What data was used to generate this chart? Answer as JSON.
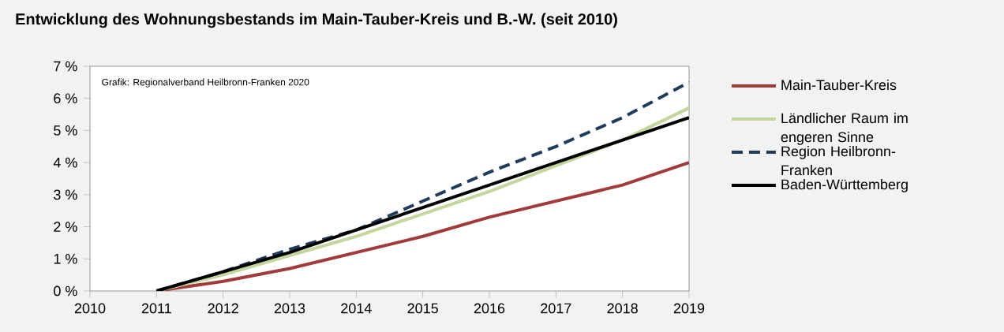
{
  "chart_data": {
    "type": "line",
    "title": "Entwicklung des Wohnungsbestands im Main-Tauber-Kreis und B.-W. (seit 2010)",
    "annotations": [
      "Grafik: Regionalverband Heilbronn-Franken 2020"
    ],
    "x": [
      2011,
      2012,
      2013,
      2014,
      2015,
      2016,
      2017,
      2018,
      2019
    ],
    "series": [
      {
        "name": "Main-Tauber-Kreis",
        "color": "#a33a3a",
        "values": [
          0,
          0.3,
          0.7,
          1.2,
          1.7,
          2.3,
          2.8,
          3.3,
          4.0
        ]
      },
      {
        "name": "Ländlicher Raum im engeren Sinne",
        "color": "#c3d69b",
        "values": [
          0,
          0.5,
          1.1,
          1.7,
          2.4,
          3.1,
          3.9,
          4.7,
          5.7
        ]
      },
      {
        "name": "Region Heilbronn-Franken",
        "color": "#1f3c5f",
        "line_style": "dashed",
        "values": [
          0,
          0.6,
          1.3,
          1.9,
          2.8,
          3.7,
          4.5,
          5.4,
          6.5
        ]
      },
      {
        "name": "Baden-Württemberg",
        "color": "#000000",
        "values": [
          0,
          0.6,
          1.2,
          1.9,
          2.6,
          3.3,
          4.0,
          4.7,
          5.4
        ]
      }
    ],
    "xlim": [
      2010,
      2019
    ],
    "xticks": [
      2010,
      2011,
      2012,
      2013,
      2014,
      2015,
      2016,
      2017,
      2018,
      2019
    ],
    "ylim": [
      0,
      7
    ],
    "yticks": [
      {
        "value": 0,
        "label": "0 %"
      },
      {
        "value": 1,
        "label": "1 %"
      },
      {
        "value": 2,
        "label": "2 %"
      },
      {
        "value": 3,
        "label": "3 %"
      },
      {
        "value": 4,
        "label": "4 %"
      },
      {
        "value": 5,
        "label": "5 %"
      },
      {
        "value": 6,
        "label": "6 %"
      },
      {
        "value": 7,
        "label": "7 %"
      }
    ],
    "legend": "right",
    "grid": false,
    "marker": "none",
    "line_style": "solid"
  }
}
